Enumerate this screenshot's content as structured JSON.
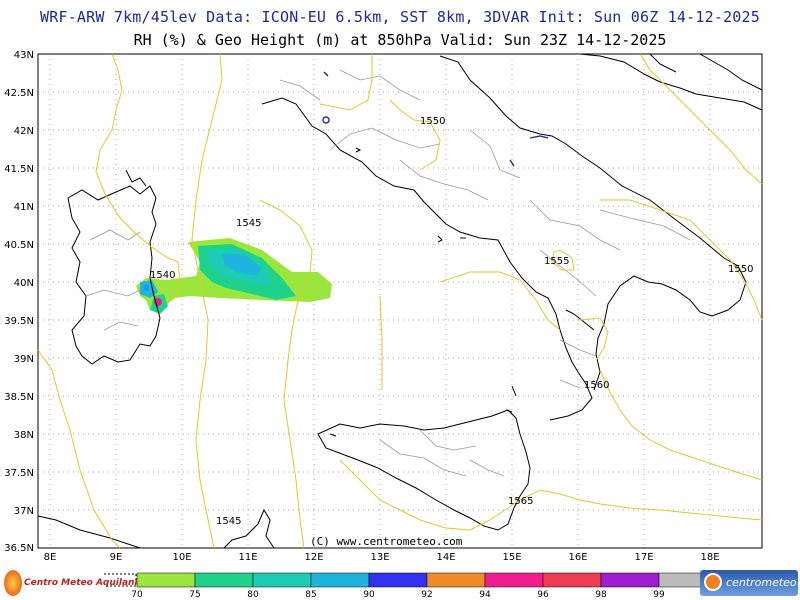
{
  "header": {
    "line1": "WRF-ARW 7km/45lev  Data: ICON-EU 6.5km, SST 8km, 3DVAR  Init: Sun 06Z 14-12-2025",
    "line2": "RH (%) & Geo Height (m) at 850hPa  Valid: Sun 23Z 14-12-2025"
  },
  "axes": {
    "lat_labels": [
      "43N",
      "42.5N",
      "42N",
      "41.5N",
      "41N",
      "40.5N",
      "40N",
      "39.5N",
      "39N",
      "38.5N",
      "38N",
      "37.5N",
      "37N",
      "36.5N"
    ],
    "lon_labels": [
      "8E",
      "9E",
      "10E",
      "11E",
      "12E",
      "13E",
      "14E",
      "15E",
      "16E",
      "17E",
      "18E"
    ]
  },
  "contour_labels": [
    "1550",
    "1545",
    "1540",
    "1555",
    "1550",
    "1560",
    "1565",
    "1545"
  ],
  "copyright": "(C) www.centrometeo.com",
  "legend": {
    "values": [
      "70",
      "75",
      "80",
      "85",
      "90",
      "92",
      "94",
      "96",
      "98",
      "99"
    ],
    "colors": [
      "#9be63c",
      "#1ed28c",
      "#1ecbb4",
      "#1eb4dc",
      "#0aa0f0",
      "#3232f0",
      "#f08c28",
      "#f01e8c",
      "#f03c50",
      "#a01ed2"
    ]
  },
  "logos": {
    "left_text": "Centro Meteo Aquilani",
    "right_text": "centrometeo"
  }
}
